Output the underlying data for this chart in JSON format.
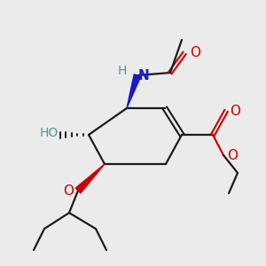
{
  "background_color": "#ebebeb",
  "bond_color": "#1a1a1a",
  "atom_colors": {
    "O": "#cc0000",
    "N": "#1a1acc",
    "H_teal": "#4d9999",
    "C": "#1a1a1a"
  },
  "figsize": [
    3.0,
    3.0
  ],
  "dpi": 100
}
